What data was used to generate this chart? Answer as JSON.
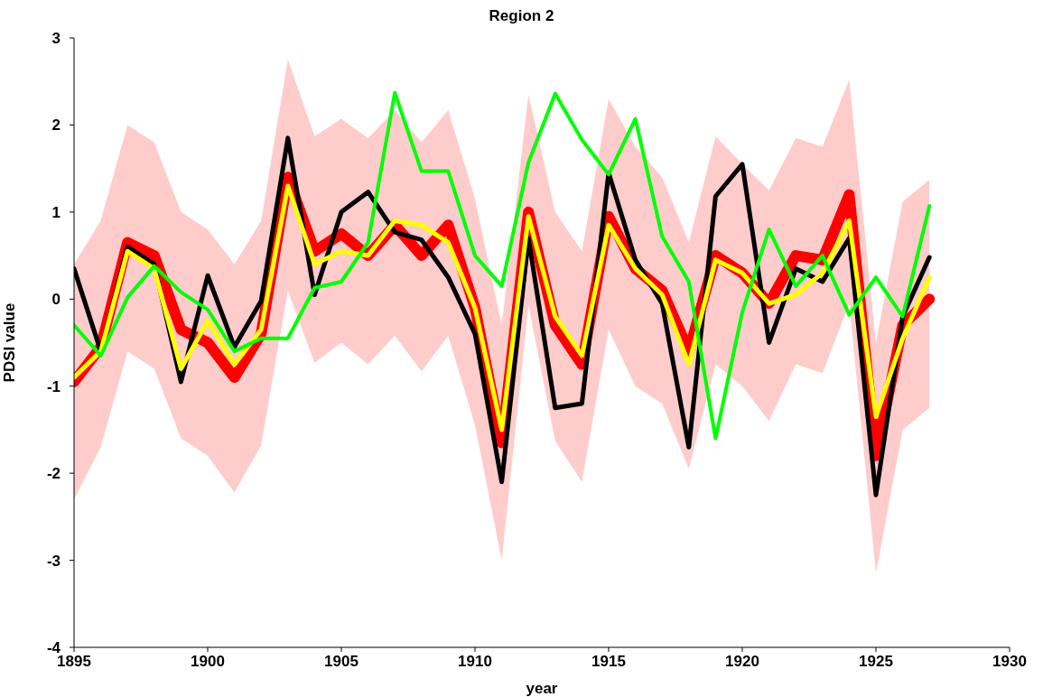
{
  "chart_data": {
    "type": "line",
    "title": "Region 2",
    "xlabel": "year",
    "ylabel": "PDSI value",
    "x": [
      1895,
      1896,
      1897,
      1898,
      1899,
      1900,
      1901,
      1902,
      1903,
      1904,
      1905,
      1906,
      1907,
      1908,
      1909,
      1910,
      1911,
      1912,
      1913,
      1914,
      1915,
      1916,
      1917,
      1918,
      1919,
      1920,
      1921,
      1922,
      1923,
      1924,
      1925,
      1926,
      1927
    ],
    "xlim": [
      1895,
      1930
    ],
    "xticks": [
      1895,
      1900,
      1905,
      1910,
      1915,
      1920,
      1925,
      1930
    ],
    "ylim": [
      -4,
      3
    ],
    "yticks": [
      -4,
      -3,
      -2,
      -1,
      0,
      1,
      2,
      3
    ],
    "grid": false,
    "marker": "none",
    "line_style": "solid",
    "series": [
      {
        "color": "#ff0000",
        "values": [
          -0.95,
          -0.55,
          0.65,
          0.5,
          -0.35,
          -0.5,
          -0.9,
          -0.4,
          1.4,
          0.55,
          0.75,
          0.5,
          0.85,
          0.5,
          0.85,
          -0.1,
          -1.65,
          1.0,
          -0.3,
          -0.75,
          0.95,
          0.35,
          0.1,
          -0.6,
          0.5,
          0.3,
          -0.05,
          0.5,
          0.45,
          1.2,
          -1.8,
          -0.3,
          0.0
        ],
        "lower": [
          -2.3,
          -1.7,
          -0.6,
          -0.8,
          -1.6,
          -1.8,
          -2.22,
          -1.68,
          0.1,
          -0.73,
          -0.5,
          -0.75,
          -0.42,
          -0.83,
          -0.42,
          -1.45,
          -3.0,
          -0.07,
          -1.63,
          -2.1,
          -0.35,
          -1.0,
          -1.2,
          -1.95,
          -0.75,
          -1.0,
          -1.4,
          -0.75,
          -0.85,
          -0.05,
          -3.15,
          -1.5,
          -1.25
        ],
        "upper": [
          0.4,
          0.9,
          2.0,
          1.8,
          1.0,
          0.8,
          0.4,
          0.9,
          2.75,
          1.87,
          2.07,
          1.85,
          2.17,
          1.8,
          2.17,
          1.15,
          -0.3,
          2.35,
          1.0,
          0.55,
          2.3,
          1.75,
          1.4,
          0.65,
          1.87,
          1.55,
          1.25,
          1.85,
          1.75,
          2.52,
          -0.5,
          1.12,
          1.37
        ]
      },
      {
        "color": "#000000",
        "values": [
          0.35,
          -0.6,
          0.6,
          0.4,
          -0.95,
          0.27,
          -0.55,
          -0.02,
          1.85,
          0.05,
          1.0,
          1.23,
          0.77,
          0.68,
          0.25,
          -0.4,
          -2.1,
          0.7,
          -1.25,
          -1.2,
          1.45,
          0.45,
          -0.05,
          -1.7,
          1.18,
          1.55,
          -0.5,
          0.35,
          0.2,
          0.7,
          -2.25,
          -0.2,
          0.48
        ]
      },
      {
        "color": "#ffff00",
        "values": [
          -0.9,
          -0.6,
          0.55,
          0.35,
          -0.8,
          -0.25,
          -0.75,
          -0.35,
          1.3,
          0.4,
          0.55,
          0.5,
          0.9,
          0.85,
          0.65,
          -0.1,
          -1.5,
          0.95,
          -0.2,
          -0.65,
          0.85,
          0.35,
          0.05,
          -0.75,
          0.45,
          0.3,
          -0.05,
          0.05,
          0.3,
          0.9,
          -1.35,
          -0.45,
          0.25
        ]
      },
      {
        "color": "#00ff00",
        "values": [
          -0.3,
          -0.65,
          0.02,
          0.38,
          0.08,
          -0.12,
          -0.6,
          -0.45,
          -0.45,
          0.13,
          0.2,
          0.65,
          2.37,
          1.47,
          1.47,
          0.5,
          0.15,
          1.57,
          2.36,
          1.83,
          1.43,
          2.07,
          0.72,
          0.2,
          -1.6,
          -0.15,
          0.8,
          0.15,
          0.5,
          -0.18,
          0.25,
          -0.2,
          1.07
        ]
      }
    ]
  }
}
